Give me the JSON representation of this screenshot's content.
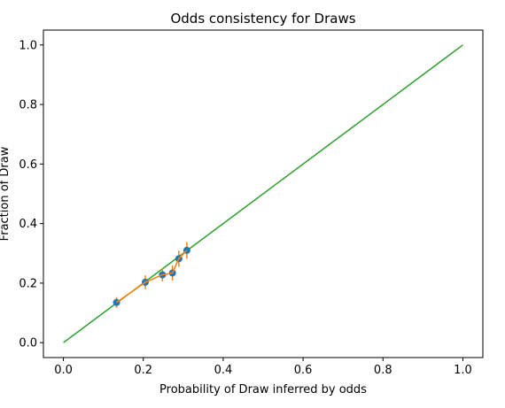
{
  "chart_data": {
    "type": "line",
    "title": "Odds consistency for Draws",
    "xlabel": "Probability of Draw inferred by odds",
    "ylabel": "Fraction of Draw",
    "xlim": [
      -0.05,
      1.05
    ],
    "ylim": [
      -0.05,
      1.05
    ],
    "xticks": [
      "0.0",
      "0.2",
      "0.4",
      "0.6",
      "0.8",
      "1.0"
    ],
    "yticks": [
      "0.0",
      "0.2",
      "0.4",
      "0.6",
      "0.8",
      "1.0"
    ],
    "grid": false,
    "series": [
      {
        "kind": "reference-line",
        "color": "#2ca02c",
        "x": [
          0.0,
          1.0
        ],
        "y": [
          0.0,
          1.0
        ]
      },
      {
        "kind": "points-with-errorbars",
        "color": "#1f77b4",
        "errorbar_color": "#ff7f0e",
        "x": [
          0.133,
          0.205,
          0.248,
          0.273,
          0.289,
          0.309
        ],
        "y": [
          0.135,
          0.203,
          0.228,
          0.234,
          0.282,
          0.31
        ],
        "yerr": [
          0.018,
          0.023,
          0.022,
          0.025,
          0.027,
          0.028
        ]
      }
    ]
  }
}
